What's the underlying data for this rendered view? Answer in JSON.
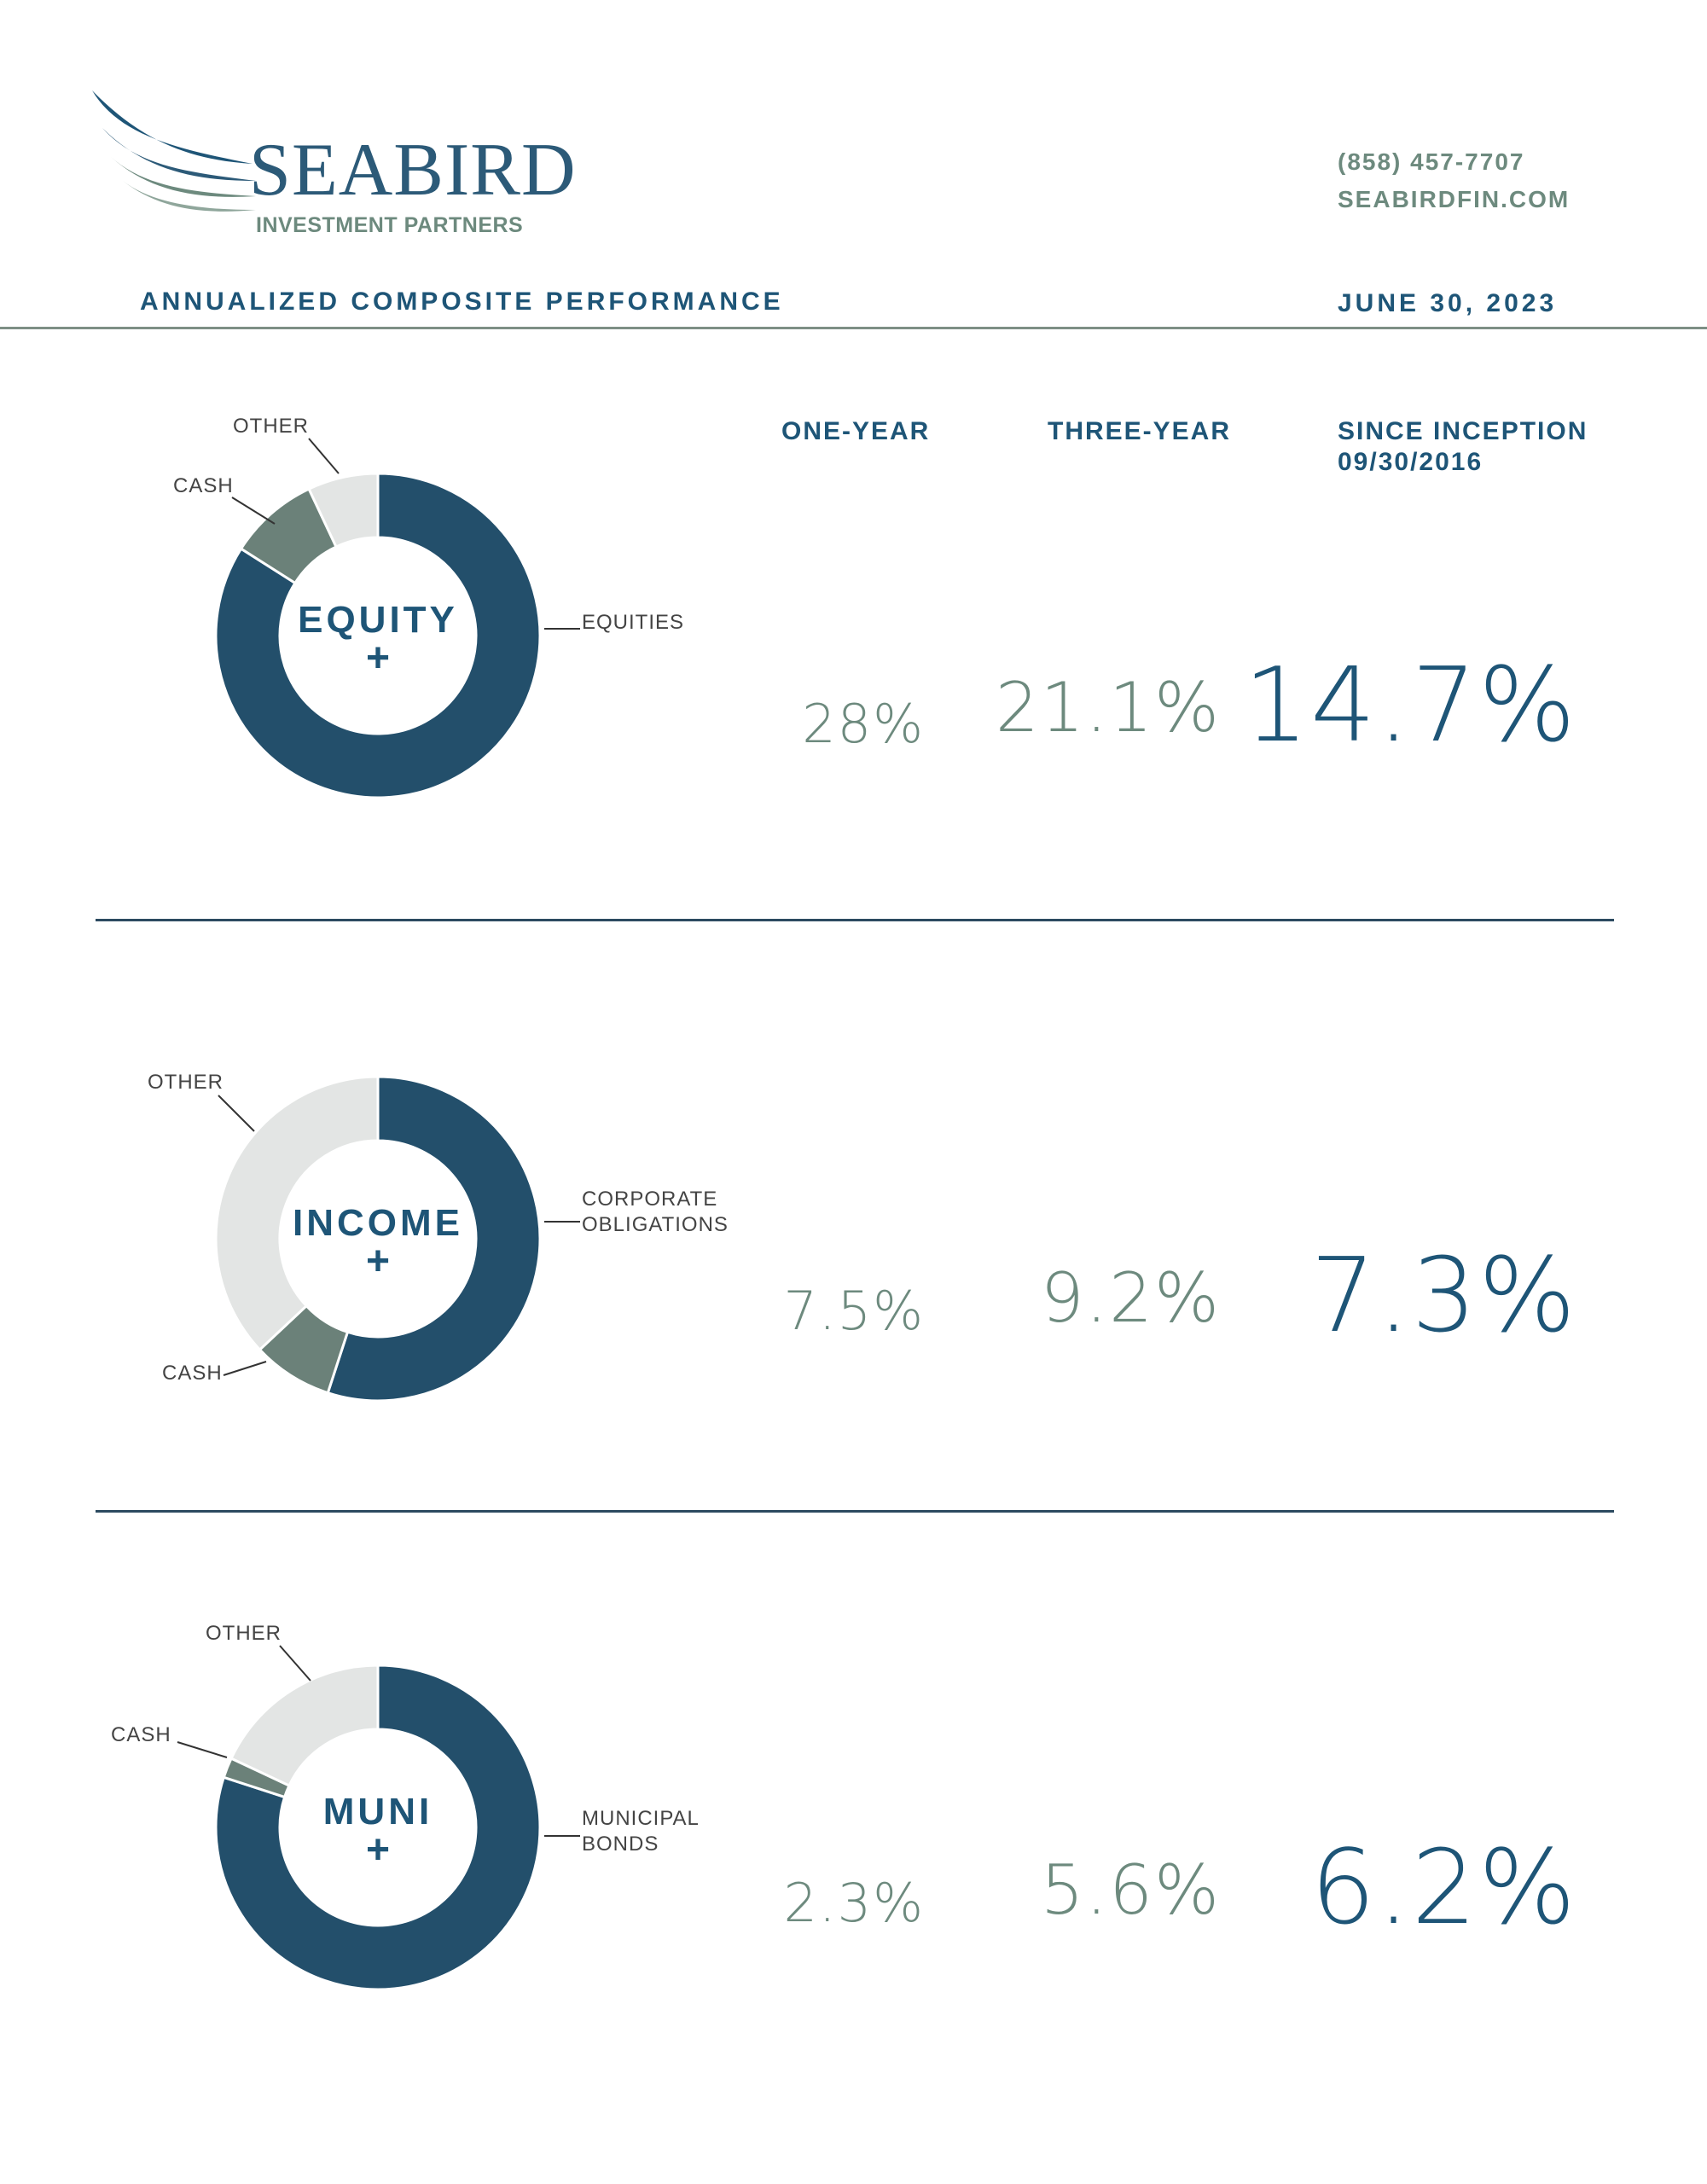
{
  "brand": {
    "name": "SEABIRD",
    "tagline": "INVESTMENT PARTNERS",
    "phone": "(858) 457-7707",
    "website": "SEABIRDFIN.COM"
  },
  "header": {
    "title": "ANNUALIZED COMPOSITE PERFORMANCE",
    "date": "JUNE 30, 2023"
  },
  "columns": {
    "one_year": "ONE-YEAR",
    "three_year": "THREE-YEAR",
    "since_inception": "SINCE INCEPTION",
    "inception_date": "09/30/2016"
  },
  "colors": {
    "primary": "#234f6b",
    "secondary": "#6b8179",
    "light": "#e3e5e4",
    "text_blue": "#1e5577",
    "text_green": "#6d8a7e"
  },
  "strategies": [
    {
      "name": "EQUITY",
      "symbol": "+",
      "one_year": "28%",
      "three_year": "21.1%",
      "since_inception": "14.7%"
    },
    {
      "name": "INCOME",
      "symbol": "+",
      "one_year": "7.5%",
      "three_year": "9.2%",
      "since_inception": "7.3%"
    },
    {
      "name": "MUNI",
      "symbol": "+",
      "one_year": "2.3%",
      "three_year": "5.6%",
      "since_inception": "6.2%"
    }
  ],
  "chart_data": [
    {
      "type": "pie",
      "title": "EQUITY +",
      "segments": [
        {
          "label": "EQUITIES",
          "value": 84,
          "color": "#234f6b"
        },
        {
          "label": "CASH",
          "value": 9,
          "color": "#6b8179"
        },
        {
          "label": "OTHER",
          "value": 7,
          "color": "#e3e5e4"
        }
      ]
    },
    {
      "type": "pie",
      "title": "INCOME +",
      "segments": [
        {
          "label": "CORPORATE OBLIGATIONS",
          "value": 55,
          "color": "#234f6b"
        },
        {
          "label": "CASH",
          "value": 8,
          "color": "#6b8179"
        },
        {
          "label": "OTHER",
          "value": 37,
          "color": "#e3e5e4"
        }
      ]
    },
    {
      "type": "pie",
      "title": "MUNI +",
      "segments": [
        {
          "label": "MUNICIPAL BONDS",
          "value": 80,
          "color": "#234f6b"
        },
        {
          "label": "CASH",
          "value": 2,
          "color": "#6b8179"
        },
        {
          "label": "OTHER",
          "value": 18,
          "color": "#e3e5e4"
        }
      ]
    }
  ]
}
